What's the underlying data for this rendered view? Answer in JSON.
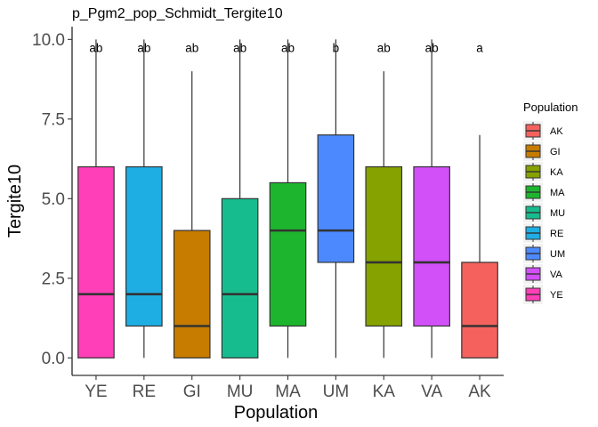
{
  "chart_data": {
    "type": "boxplot",
    "title": "p_Pgm2_pop_Schmidt_Tergite10",
    "xlabel": "Population",
    "ylabel": "Tergite10",
    "ylim": [
      -0.55,
      10.4
    ],
    "yticks": [
      0.0,
      2.5,
      5.0,
      7.5,
      10.0
    ],
    "ytick_labels": [
      "0.0",
      "2.5",
      "5.0",
      "7.5",
      "10.0"
    ],
    "grid": false,
    "legend": {
      "title": "Population",
      "position": "right",
      "entries": [
        "AK",
        "GI",
        "KA",
        "MA",
        "MU",
        "RE",
        "UM",
        "VA",
        "YE"
      ]
    },
    "categories": [
      "YE",
      "RE",
      "GI",
      "MU",
      "MA",
      "UM",
      "KA",
      "VA",
      "AK"
    ],
    "boxes": [
      {
        "category": "YE",
        "color": "#FF3FB8",
        "whisker_low": 0,
        "q1": 0,
        "median": 2,
        "q3": 6,
        "whisker_high": 10,
        "letter": "ab"
      },
      {
        "category": "RE",
        "color": "#1FAEE3",
        "whisker_low": 0,
        "q1": 1,
        "median": 2,
        "q3": 6,
        "whisker_high": 10,
        "letter": "ab"
      },
      {
        "category": "GI",
        "color": "#C77C00",
        "whisker_low": 0,
        "q1": 0,
        "median": 1,
        "q3": 4,
        "whisker_high": 9,
        "letter": "ab"
      },
      {
        "category": "MU",
        "color": "#17BC8E",
        "whisker_low": 0,
        "q1": 0,
        "median": 2,
        "q3": 5,
        "whisker_high": 10,
        "letter": "ab"
      },
      {
        "category": "MA",
        "color": "#1EB52E",
        "whisker_low": 0,
        "q1": 1,
        "median": 4,
        "q3": 5.5,
        "whisker_high": 10,
        "letter": "ab"
      },
      {
        "category": "UM",
        "color": "#4C89FF",
        "whisker_low": 0,
        "q1": 3,
        "median": 4,
        "q3": 7,
        "whisker_high": 10,
        "letter": "b"
      },
      {
        "category": "KA",
        "color": "#86A200",
        "whisker_low": 0,
        "q1": 1,
        "median": 3,
        "q3": 6,
        "whisker_high": 9,
        "letter": "ab"
      },
      {
        "category": "VA",
        "color": "#D250F8",
        "whisker_low": 0,
        "q1": 1,
        "median": 3,
        "q3": 6,
        "whisker_high": 10,
        "letter": "ab"
      },
      {
        "category": "AK",
        "color": "#F5625D",
        "whisker_low": 0,
        "q1": 0,
        "median": 1,
        "q3": 3,
        "whisker_high": 7,
        "letter": "a"
      }
    ],
    "legend_colors": {
      "AK": "#F5625D",
      "GI": "#C77C00",
      "KA": "#86A200",
      "MA": "#1EB52E",
      "MU": "#17BC8E",
      "RE": "#1FAEE3",
      "UM": "#4C89FF",
      "VA": "#D250F8",
      "YE": "#FF3FB8"
    },
    "letter_y": 9.75
  }
}
